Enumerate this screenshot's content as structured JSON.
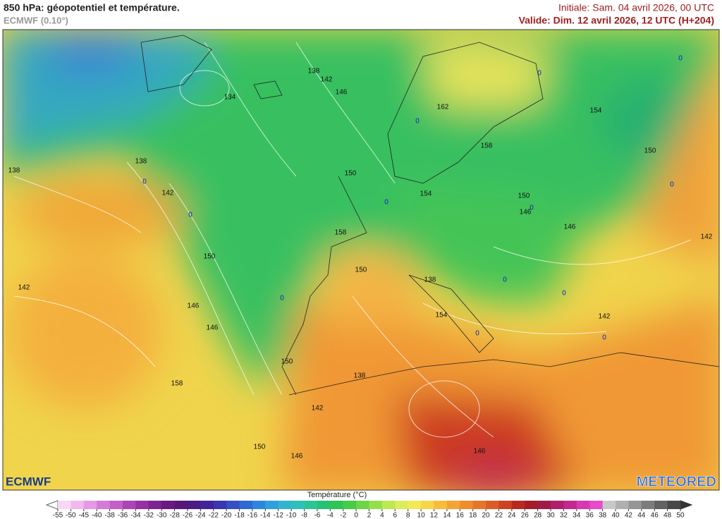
{
  "header": {
    "title": "850 hPa: géopotentiel et température.",
    "model": "ECMWF (0.10°)",
    "init": "Initiale: Sam. 04 avril 2026, 00 UTC",
    "valid": "Valide: Dim. 12 avril 2026, 12 UTC (H+204)"
  },
  "map": {
    "contour_labels": [
      138,
      142,
      146,
      134,
      162,
      154,
      138,
      138,
      0,
      142,
      150,
      158,
      150,
      154,
      150,
      146,
      0,
      0,
      0,
      0,
      0,
      0,
      0,
      146,
      142,
      150,
      150,
      142,
      158,
      0,
      138,
      0,
      146,
      154,
      142,
      146,
      0,
      0,
      150,
      0,
      138,
      158,
      142,
      150,
      146,
      146
    ]
  },
  "logos": {
    "left": "ECMWF",
    "right": "METEORED"
  },
  "legend": {
    "title": "Température (°C)",
    "ticks": [
      -55,
      -50,
      -45,
      -40,
      -38,
      -36,
      -34,
      -32,
      -30,
      -28,
      -26,
      -24,
      -22,
      -20,
      -18,
      -16,
      -14,
      -12,
      -10,
      -8,
      -6,
      -4,
      -2,
      0,
      2,
      4,
      6,
      8,
      10,
      12,
      14,
      16,
      18,
      20,
      22,
      24,
      26,
      28,
      30,
      32,
      34,
      36,
      38,
      40,
      42,
      44,
      46,
      48,
      50
    ],
    "colors": [
      "#f7d8f4",
      "#f0b8ee",
      "#e69ae6",
      "#d67ad8",
      "#c45ec8",
      "#ad44b6",
      "#9630a4",
      "#7e2290",
      "#6a1a80",
      "#581878",
      "#4a1c84",
      "#40249a",
      "#3a36b0",
      "#3450c4",
      "#2e6ad4",
      "#2e86dc",
      "#30a0dc",
      "#32b4d0",
      "#2ec0b4",
      "#2cc496",
      "#28c072",
      "#2ec456",
      "#46cc48",
      "#6cd648",
      "#94e04c",
      "#bce854",
      "#dcec5c",
      "#f2e858",
      "#f8d448",
      "#f8bc3c",
      "#f4a434",
      "#ee8c2e",
      "#e6742a",
      "#dc5c26",
      "#cc4222",
      "#b82a20",
      "#a41c28",
      "#a01c48",
      "#b0206c",
      "#c42890",
      "#d838b0",
      "#e44ccc",
      "#c8c8c8",
      "#b0b0b0",
      "#969696",
      "#7c7c7c",
      "#626262",
      "#484848"
    ]
  }
}
